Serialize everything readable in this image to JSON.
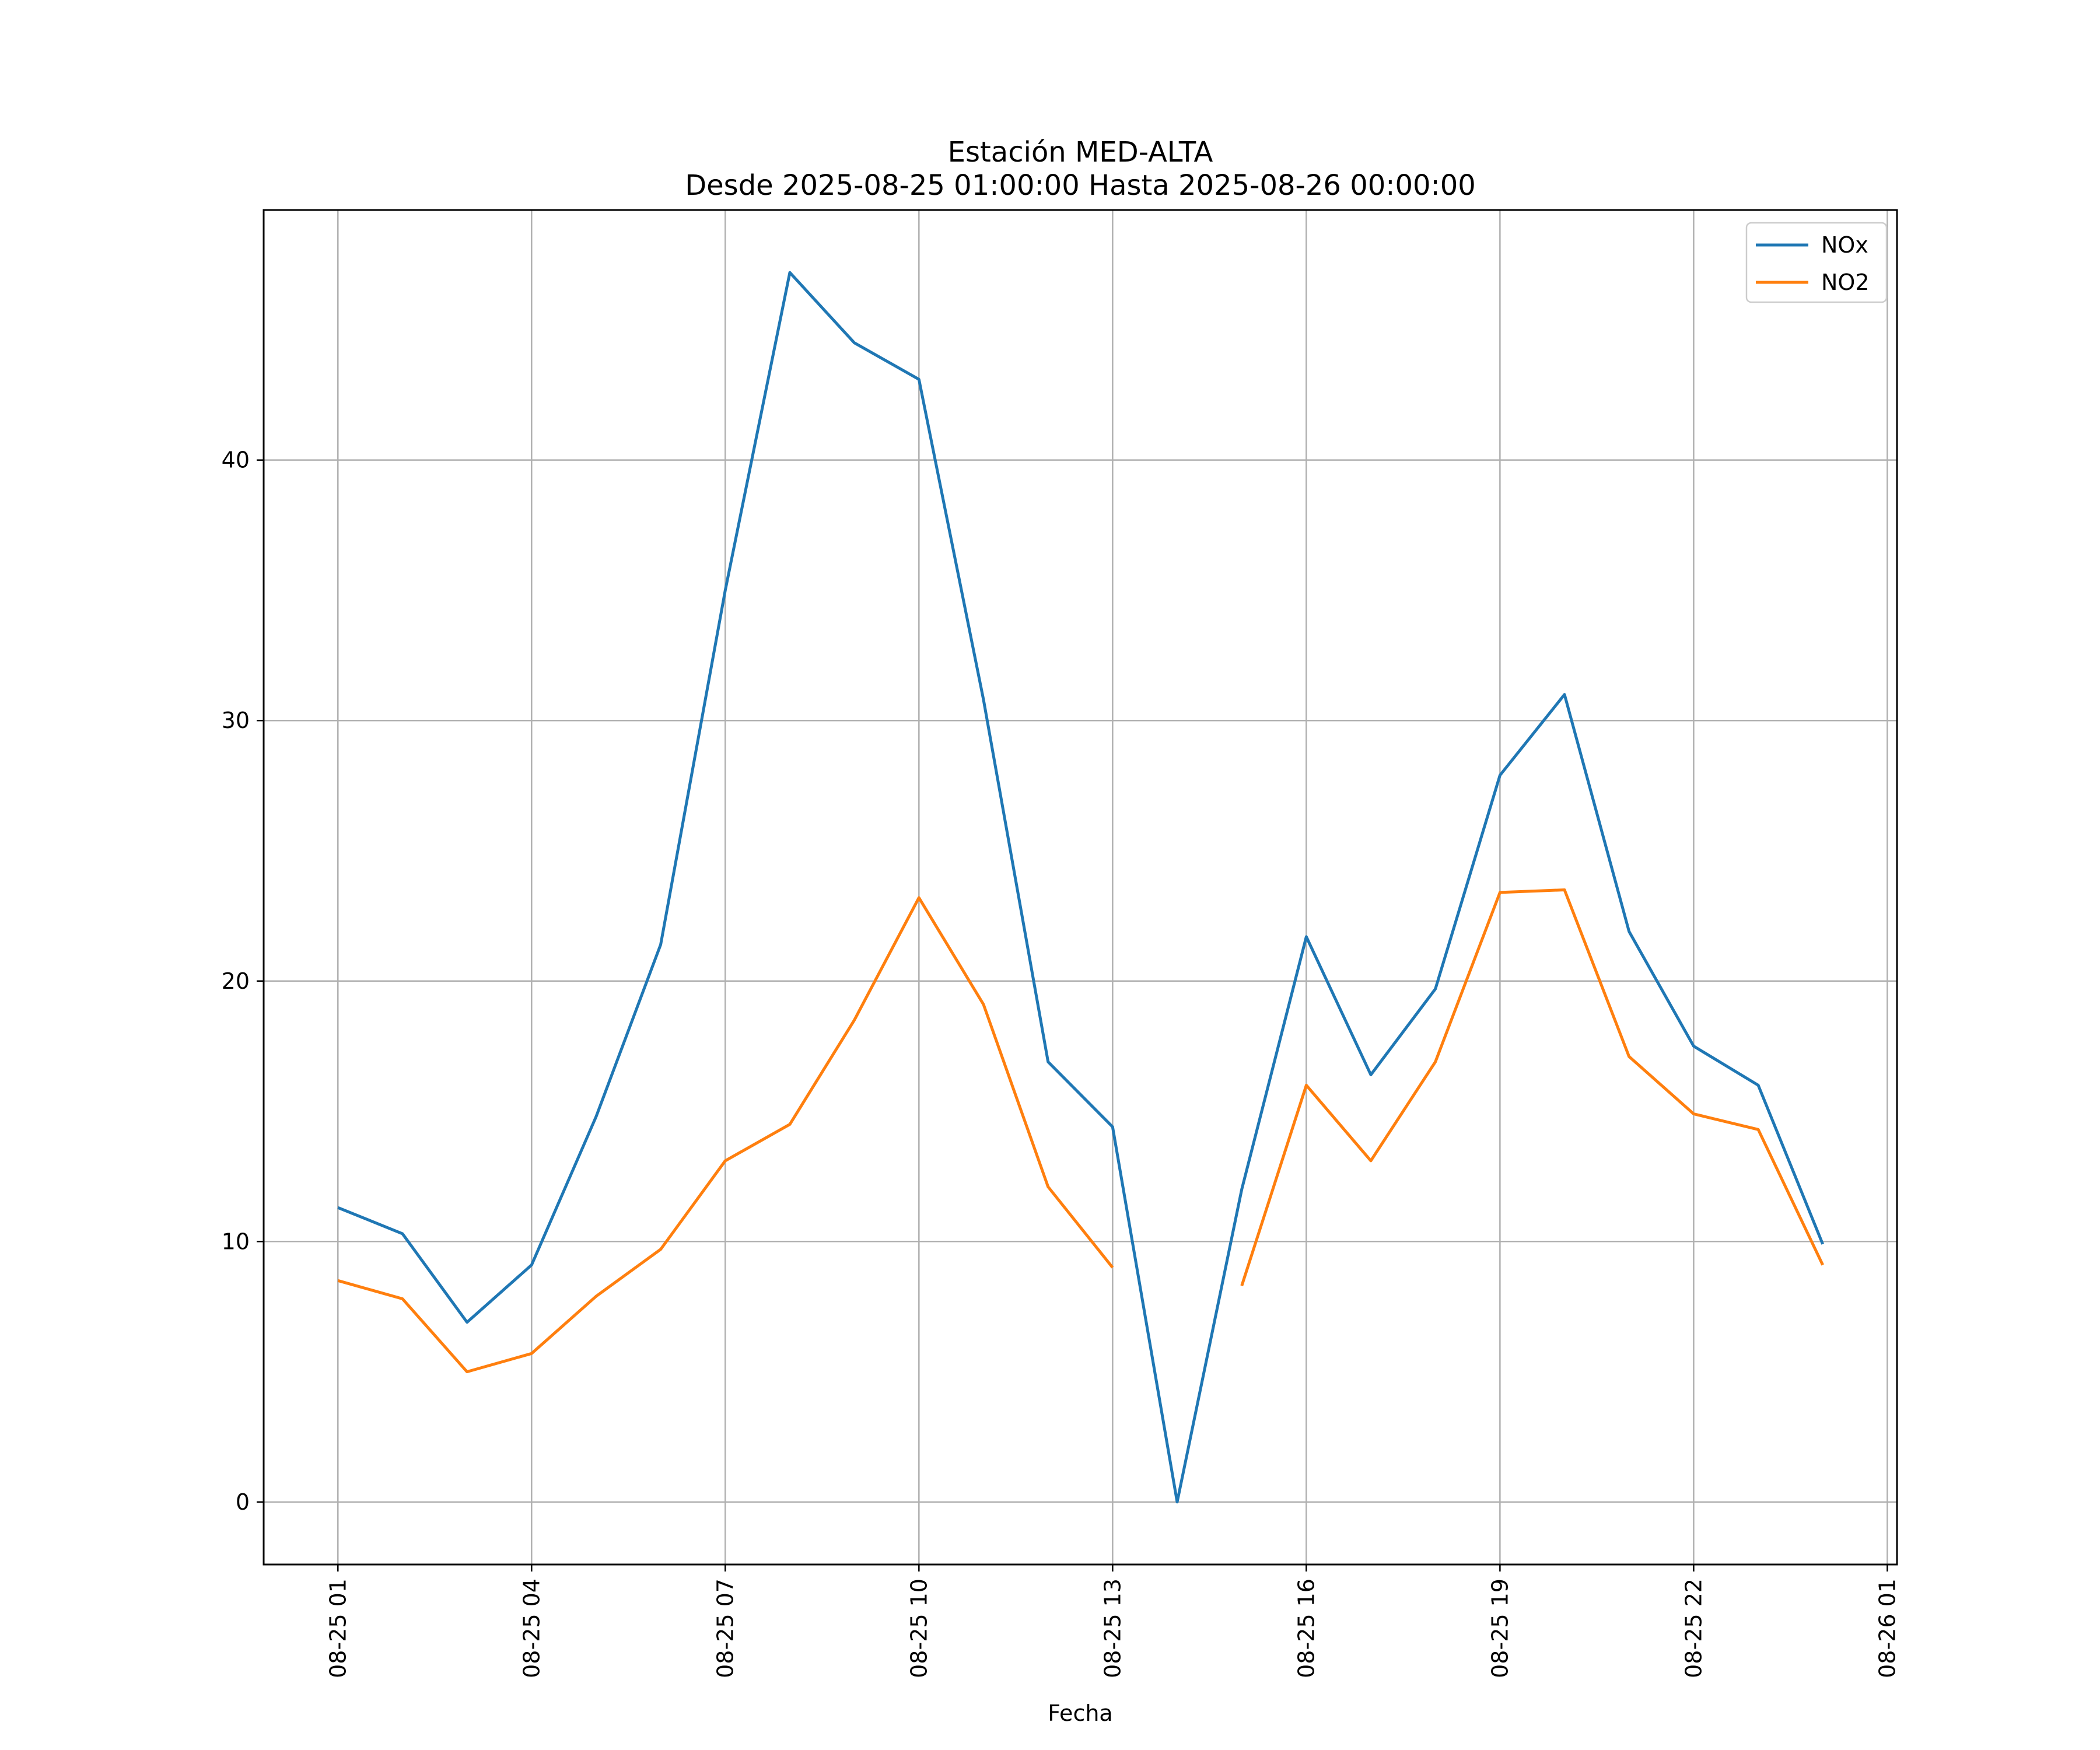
{
  "chart_data": {
    "type": "line",
    "title": "Estación MED-ALTA",
    "subtitle": "Desde 2025-08-25 01:00:00 Hasta 2025-08-26 00:00:00",
    "xlabel": "Fecha",
    "ylabel": "",
    "x": [
      "2025-08-25 01:00",
      "2025-08-25 02:00",
      "2025-08-25 03:00",
      "2025-08-25 04:00",
      "2025-08-25 05:00",
      "2025-08-25 06:00",
      "2025-08-25 07:00",
      "2025-08-25 08:00",
      "2025-08-25 09:00",
      "2025-08-25 10:00",
      "2025-08-25 11:00",
      "2025-08-25 12:00",
      "2025-08-25 13:00",
      "2025-08-25 14:00",
      "2025-08-25 15:00",
      "2025-08-25 16:00",
      "2025-08-25 17:00",
      "2025-08-25 18:00",
      "2025-08-25 19:00",
      "2025-08-25 20:00",
      "2025-08-25 21:00",
      "2025-08-25 22:00",
      "2025-08-25 23:00",
      "2025-08-26 00:00"
    ],
    "x_ticks": [
      "08-25 01",
      "08-25 04",
      "08-25 07",
      "08-25 10",
      "08-25 13",
      "08-25 16",
      "08-25 19",
      "08-25 22",
      "08-26 01"
    ],
    "x_tick_dates": [
      "2025-08-25 01:00",
      "2025-08-25 04:00",
      "2025-08-25 07:00",
      "2025-08-25 10:00",
      "2025-08-25 13:00",
      "2025-08-25 16:00",
      "2025-08-25 19:00",
      "2025-08-25 22:00",
      "2025-08-26 01:00"
    ],
    "xlim": [
      "2025-08-24 23:51",
      "2025-08-26 01:09"
    ],
    "y_ticks": [
      0,
      10,
      20,
      30,
      40
    ],
    "ylim": [
      -2.4,
      49.6
    ],
    "grid": true,
    "legend_position": "top-right",
    "series": [
      {
        "name": "NOx",
        "color": "#1f77b4",
        "values": [
          11.3,
          10.3,
          6.9,
          9.1,
          14.8,
          21.4,
          35.0,
          47.2,
          44.5,
          43.1,
          30.8,
          16.9,
          14.4,
          0.0,
          12.0,
          21.7,
          16.4,
          19.7,
          27.9,
          31.0,
          21.9,
          17.5,
          16.0,
          9.9
        ]
      },
      {
        "name": "NO2",
        "color": "#ff7f0e",
        "values": [
          8.5,
          7.8,
          5.0,
          5.7,
          7.9,
          9.7,
          13.1,
          14.5,
          18.5,
          23.2,
          19.1,
          12.1,
          9.0,
          null,
          8.3,
          16.0,
          13.1,
          16.9,
          23.4,
          23.5,
          17.1,
          14.9,
          14.3,
          9.1
        ]
      }
    ]
  }
}
